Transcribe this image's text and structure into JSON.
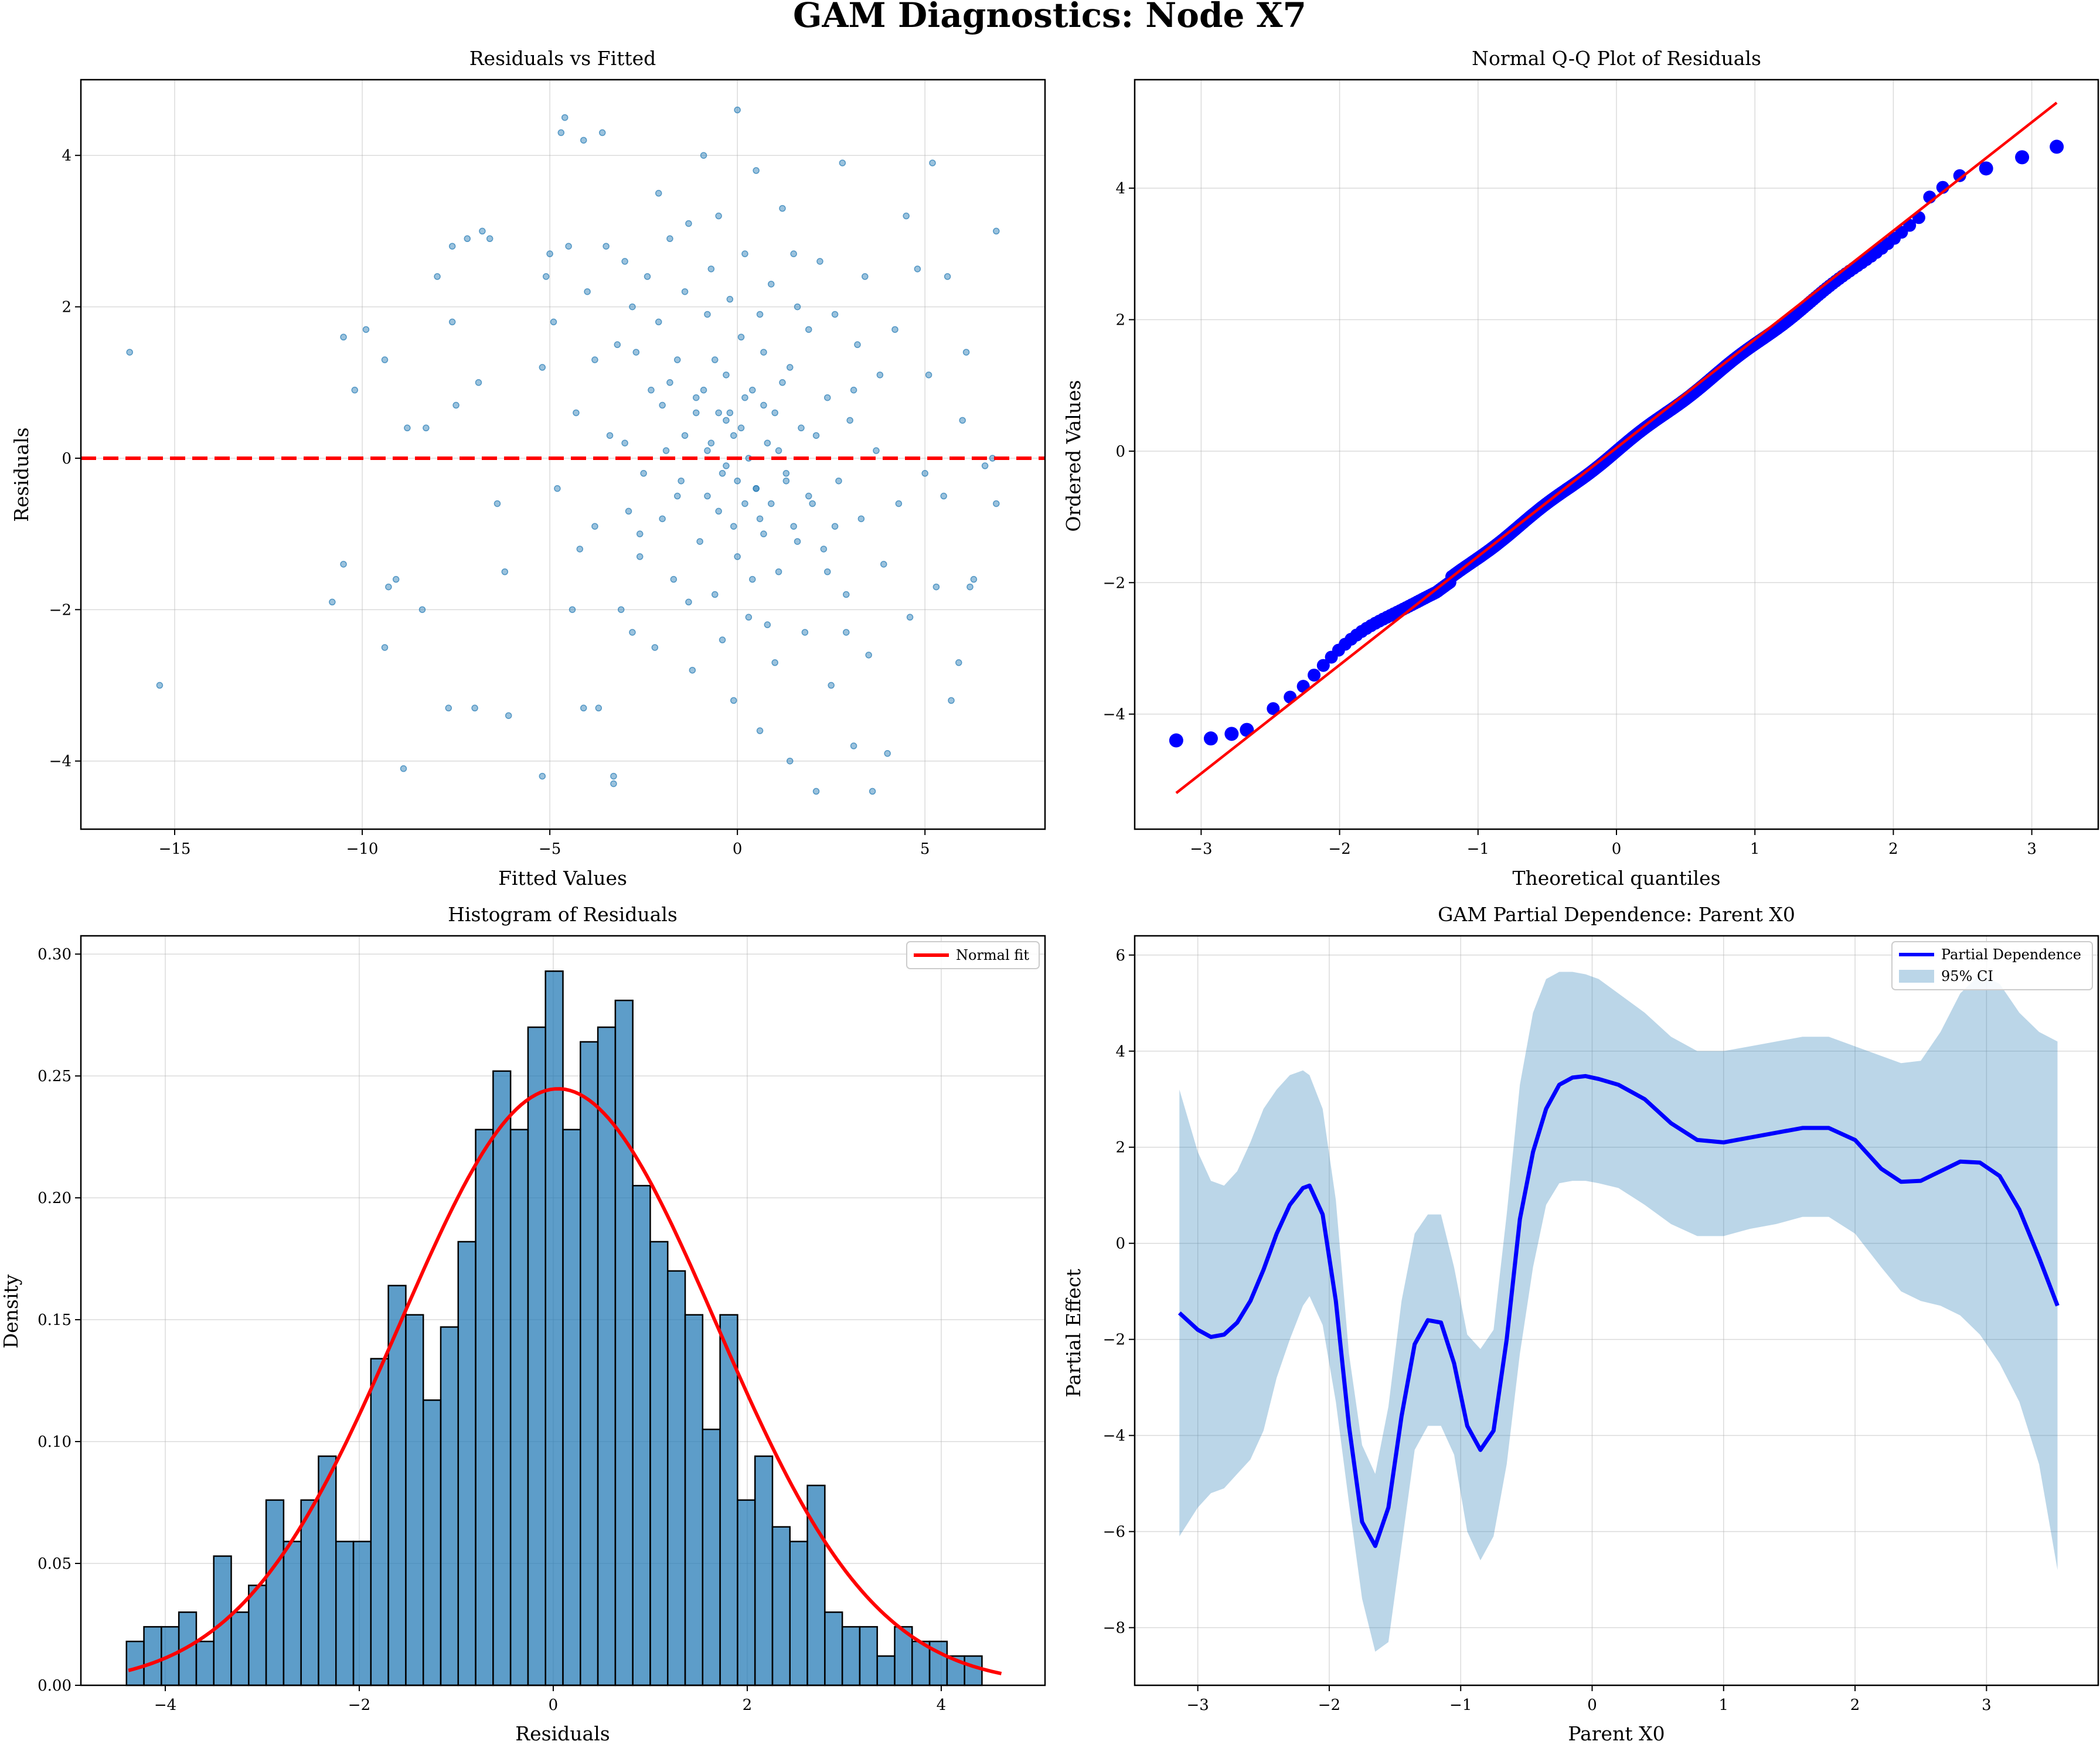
{
  "suptitle": "GAM Diagnostics: Node X7",
  "colors": {
    "scatter": "#1f77b4",
    "refline": "#ff0000",
    "qq_points": "#0000ff",
    "hist_fill": "#1f77b4",
    "pd_line": "#0000ff",
    "ci_fill": "#1f77b4"
  },
  "chart_data": [
    {
      "id": "residuals_vs_fitted",
      "type": "scatter",
      "title": "Residuals vs Fitted",
      "xlabel": "Fitted Values",
      "ylabel": "Residuals",
      "xlim": [
        -17.5,
        8.2
      ],
      "ylim": [
        -4.9,
        5.0
      ],
      "xticks": [
        -15,
        -10,
        -5,
        0,
        5
      ],
      "xtick_labels": [
        "−15",
        "−10",
        "−5",
        "0",
        "5"
      ],
      "yticks": [
        -4,
        -2,
        0,
        2,
        4
      ],
      "ytick_labels": [
        "−4",
        "−2",
        "0",
        "2",
        "4"
      ],
      "grid": true,
      "reference_line_y": 0,
      "points": [
        [
          -16.2,
          1.4
        ],
        [
          -15.4,
          -3.0
        ],
        [
          -10.8,
          -1.9
        ],
        [
          -10.5,
          1.6
        ],
        [
          -10.5,
          -1.4
        ],
        [
          -10.2,
          0.9
        ],
        [
          -9.9,
          1.7
        ],
        [
          -9.4,
          1.3
        ],
        [
          -9.4,
          -2.5
        ],
        [
          -9.3,
          -1.7
        ],
        [
          -9.1,
          -1.6
        ],
        [
          -8.9,
          -4.1
        ],
        [
          -8.8,
          0.4
        ],
        [
          -8.4,
          -2.0
        ],
        [
          -8.3,
          0.4
        ],
        [
          -8.0,
          2.4
        ],
        [
          -7.7,
          -3.3
        ],
        [
          -7.6,
          1.8
        ],
        [
          -7.6,
          2.8
        ],
        [
          -7.5,
          0.7
        ],
        [
          -7.2,
          2.9
        ],
        [
          -7.0,
          -3.3
        ],
        [
          -6.9,
          1.0
        ],
        [
          -6.8,
          3.0
        ],
        [
          -6.6,
          2.9
        ],
        [
          -6.4,
          -0.6
        ],
        [
          -6.2,
          -1.5
        ],
        [
          -6.1,
          -3.4
        ],
        [
          -5.2,
          -4.2
        ],
        [
          -5.2,
          1.2
        ],
        [
          -5.1,
          2.4
        ],
        [
          -5.0,
          2.7
        ],
        [
          -4.9,
          1.8
        ],
        [
          -4.8,
          -0.4
        ],
        [
          -4.7,
          4.3
        ],
        [
          -4.6,
          4.5
        ],
        [
          -4.5,
          2.8
        ],
        [
          -4.4,
          -2.0
        ],
        [
          -4.3,
          0.6
        ],
        [
          -4.2,
          -1.2
        ],
        [
          -4.1,
          -3.3
        ],
        [
          -4.1,
          4.2
        ],
        [
          -4.0,
          2.2
        ],
        [
          -3.8,
          -0.9
        ],
        [
          -3.8,
          1.3
        ],
        [
          -3.7,
          -3.3
        ],
        [
          -3.6,
          4.3
        ],
        [
          -3.5,
          2.8
        ],
        [
          -3.4,
          0.3
        ],
        [
          -3.3,
          -4.2
        ],
        [
          -3.3,
          -4.3
        ],
        [
          -3.2,
          1.5
        ],
        [
          -3.1,
          -2.0
        ],
        [
          -3.0,
          2.6
        ],
        [
          -2.9,
          -0.7
        ],
        [
          -2.8,
          2.0
        ],
        [
          -2.7,
          1.4
        ],
        [
          -2.6,
          -1.3
        ],
        [
          -2.5,
          -0.2
        ],
        [
          -2.4,
          2.4
        ],
        [
          -2.3,
          0.9
        ],
        [
          -2.2,
          -2.5
        ],
        [
          -2.1,
          1.8
        ],
        [
          -2.1,
          3.5
        ],
        [
          -2.0,
          -0.8
        ],
        [
          -1.9,
          0.1
        ],
        [
          -1.8,
          2.9
        ],
        [
          -1.7,
          -1.6
        ],
        [
          -1.6,
          1.3
        ],
        [
          -1.5,
          -0.3
        ],
        [
          -1.4,
          2.2
        ],
        [
          -1.3,
          3.1
        ],
        [
          -1.2,
          -2.8
        ],
        [
          -1.1,
          0.8
        ],
        [
          -1.0,
          -1.1
        ],
        [
          -0.9,
          4.0
        ],
        [
          -0.8,
          1.9
        ],
        [
          -0.8,
          -0.5
        ],
        [
          -0.7,
          2.5
        ],
        [
          -0.6,
          -1.8
        ],
        [
          -0.5,
          0.6
        ],
        [
          -0.5,
          3.2
        ],
        [
          -0.4,
          -2.4
        ],
        [
          -0.3,
          1.1
        ],
        [
          -0.3,
          -0.1
        ],
        [
          -0.2,
          2.1
        ],
        [
          -0.1,
          -3.2
        ],
        [
          -0.1,
          0.3
        ],
        [
          0.0,
          4.6
        ],
        [
          0.0,
          -1.3
        ],
        [
          0.1,
          1.6
        ],
        [
          0.2,
          -0.6
        ],
        [
          0.2,
          2.7
        ],
        [
          0.3,
          -2.1
        ],
        [
          0.4,
          0.9
        ],
        [
          0.5,
          -0.4
        ],
        [
          0.5,
          3.8
        ],
        [
          0.6,
          -3.6
        ],
        [
          0.7,
          1.4
        ],
        [
          0.7,
          -1.0
        ],
        [
          0.8,
          0.2
        ],
        [
          0.9,
          2.3
        ],
        [
          1.0,
          -2.7
        ],
        [
          1.0,
          0.6
        ],
        [
          1.1,
          -1.5
        ],
        [
          1.2,
          3.3
        ],
        [
          1.3,
          -0.2
        ],
        [
          1.4,
          1.2
        ],
        [
          1.4,
          -4.0
        ],
        [
          1.5,
          -0.9
        ],
        [
          1.6,
          2.0
        ],
        [
          1.7,
          0.4
        ],
        [
          1.8,
          -2.3
        ],
        [
          1.9,
          1.7
        ],
        [
          2.0,
          -0.6
        ],
        [
          2.1,
          -4.4
        ],
        [
          2.2,
          2.6
        ],
        [
          2.3,
          -1.2
        ],
        [
          2.4,
          0.8
        ],
        [
          2.5,
          -3.0
        ],
        [
          2.6,
          1.9
        ],
        [
          2.7,
          -0.3
        ],
        [
          2.8,
          3.9
        ],
        [
          2.9,
          -1.8
        ],
        [
          3.0,
          0.5
        ],
        [
          3.1,
          -3.8
        ],
        [
          3.2,
          1.5
        ],
        [
          3.3,
          -0.8
        ],
        [
          3.4,
          2.4
        ],
        [
          3.5,
          -2.6
        ],
        [
          3.6,
          -4.4
        ],
        [
          3.7,
          0.1
        ],
        [
          3.8,
          1.1
        ],
        [
          3.9,
          -1.4
        ],
        [
          4.0,
          -3.9
        ],
        [
          4.2,
          1.7
        ],
        [
          4.3,
          -0.6
        ],
        [
          4.5,
          3.2
        ],
        [
          4.6,
          -2.1
        ],
        [
          4.8,
          2.5
        ],
        [
          5.0,
          -0.2
        ],
        [
          5.1,
          1.1
        ],
        [
          5.2,
          3.9
        ],
        [
          5.3,
          -1.7
        ],
        [
          5.5,
          -0.5
        ],
        [
          5.6,
          2.4
        ],
        [
          5.7,
          -3.2
        ],
        [
          5.9,
          -2.7
        ],
        [
          6.0,
          0.5
        ],
        [
          6.1,
          1.4
        ],
        [
          6.2,
          -1.7
        ],
        [
          6.3,
          -1.6
        ],
        [
          6.6,
          -0.1
        ],
        [
          6.8,
          0.0
        ],
        [
          6.9,
          -0.6
        ],
        [
          6.9,
          3.0
        ],
        [
          -1.1,
          0.6
        ],
        [
          -0.9,
          0.9
        ],
        [
          -0.7,
          0.2
        ],
        [
          -0.5,
          -0.7
        ],
        [
          -0.3,
          0.5
        ],
        [
          -0.1,
          -0.9
        ],
        [
          0.1,
          0.4
        ],
        [
          0.3,
          0.0
        ],
        [
          0.5,
          -0.4
        ],
        [
          0.7,
          0.7
        ],
        [
          0.9,
          -0.6
        ],
        [
          1.1,
          0.1
        ],
        [
          1.3,
          -0.3
        ],
        [
          -0.6,
          1.3
        ],
        [
          0.4,
          -1.6
        ],
        [
          1.6,
          -1.1
        ],
        [
          -1.6,
          -0.5
        ],
        [
          2.1,
          0.3
        ],
        [
          -2.0,
          0.7
        ],
        [
          0.6,
          1.9
        ],
        [
          0.8,
          -2.2
        ],
        [
          -1.3,
          -1.9
        ],
        [
          1.5,
          2.7
        ],
        [
          -0.4,
          -0.2
        ],
        [
          0.2,
          0.8
        ],
        [
          2.6,
          -0.9
        ],
        [
          -2.6,
          -1.0
        ],
        [
          3.1,
          0.9
        ],
        [
          -3.0,
          0.2
        ],
        [
          -0.8,
          0.1
        ],
        [
          1.9,
          -0.5
        ],
        [
          -1.8,
          1.0
        ],
        [
          2.9,
          -2.3
        ],
        [
          -2.8,
          -2.3
        ],
        [
          0.0,
          -0.3
        ],
        [
          -0.2,
          0.6
        ],
        [
          0.6,
          -0.8
        ],
        [
          1.2,
          1.0
        ],
        [
          -1.4,
          0.3
        ],
        [
          2.4,
          -1.5
        ]
      ]
    },
    {
      "id": "qq_plot",
      "type": "scatter",
      "title": "Normal Q-Q Plot of Residuals",
      "xlabel": "Theoretical quantiles",
      "ylabel": "Ordered Values",
      "xlim": [
        -3.48,
        3.48
      ],
      "ylim": [
        -5.75,
        5.65
      ],
      "xticks": [
        -3,
        -2,
        -1,
        0,
        1,
        2,
        3
      ],
      "xtick_labels": [
        "−3",
        "−2",
        "−1",
        "0",
        "1",
        "2",
        "3"
      ],
      "yticks": [
        -4,
        -2,
        0,
        2,
        4
      ],
      "ytick_labels": [
        "−4",
        "−2",
        "0",
        "2",
        "4"
      ],
      "grid": true,
      "fit_line": {
        "x": [
          -3.18,
          3.18
        ],
        "y": [
          -5.2,
          5.3
        ]
      },
      "outlier_points": [
        [
          -3.18,
          -4.4
        ],
        [
          -2.93,
          -4.37
        ],
        [
          -2.78,
          -4.3
        ],
        [
          -2.67,
          -4.24
        ],
        [
          2.67,
          4.3
        ],
        [
          2.93,
          4.47
        ],
        [
          3.18,
          4.63
        ]
      ]
    },
    {
      "id": "histogram",
      "type": "bar",
      "title": "Histogram of Residuals",
      "xlabel": "Residuals",
      "ylabel": "Density",
      "xlim": [
        -4.87,
        5.07
      ],
      "ylim": [
        0,
        0.3075
      ],
      "xticks": [
        -4,
        -2,
        0,
        2,
        4
      ],
      "xtick_labels": [
        "−4",
        "−2",
        "0",
        "2",
        "4"
      ],
      "yticks": [
        0.0,
        0.05,
        0.1,
        0.15,
        0.2,
        0.25,
        0.3
      ],
      "ytick_labels": [
        "0.00",
        "0.05",
        "0.10",
        "0.15",
        "0.20",
        "0.25",
        "0.30"
      ],
      "grid": true,
      "bin_start": -4.4,
      "bin_width": 0.18,
      "values": [
        0.018,
        0.024,
        0.024,
        0.03,
        0.018,
        0.053,
        0.03,
        0.041,
        0.076,
        0.059,
        0.076,
        0.094,
        0.059,
        0.059,
        0.134,
        0.164,
        0.152,
        0.117,
        0.147,
        0.182,
        0.228,
        0.252,
        0.228,
        0.27,
        0.293,
        0.228,
        0.264,
        0.27,
        0.281,
        0.205,
        0.182,
        0.17,
        0.152,
        0.105,
        0.152,
        0.076,
        0.094,
        0.065,
        0.059,
        0.082,
        0.03,
        0.024,
        0.024,
        0.012,
        0.024,
        0.018,
        0.018,
        0.012,
        0.012
      ],
      "normal_fit": {
        "mean": 0.05,
        "sd": 1.63
      },
      "legend": [
        "Normal fit"
      ],
      "legend_position": "top-right"
    },
    {
      "id": "partial_dependence",
      "type": "line",
      "title": "GAM Partial Dependence: Parent X0",
      "xlabel": "Parent X0",
      "ylabel": "Partial Effect",
      "xlim": [
        -3.48,
        3.85
      ],
      "ylim": [
        -9.2,
        6.4
      ],
      "xticks": [
        -3,
        -2,
        -1,
        0,
        1,
        2,
        3
      ],
      "xtick_labels": [
        "−3",
        "−2",
        "−1",
        "0",
        "1",
        "2",
        "3"
      ],
      "yticks": [
        -8,
        -6,
        -4,
        -2,
        0,
        2,
        4,
        6
      ],
      "ytick_labels": [
        "−8",
        "−6",
        "−4",
        "−2",
        "0",
        "2",
        "4",
        "6"
      ],
      "grid": true,
      "x": [
        -3.14,
        -3.0,
        -2.9,
        -2.8,
        -2.7,
        -2.6,
        -2.5,
        -2.4,
        -2.3,
        -2.2,
        -2.15,
        -2.05,
        -1.95,
        -1.85,
        -1.75,
        -1.65,
        -1.55,
        -1.45,
        -1.35,
        -1.25,
        -1.15,
        -1.05,
        -0.95,
        -0.85,
        -0.75,
        -0.65,
        -0.55,
        -0.45,
        -0.35,
        -0.25,
        -0.15,
        -0.05,
        0.05,
        0.2,
        0.4,
        0.6,
        0.8,
        1.0,
        1.2,
        1.4,
        1.6,
        1.8,
        2.0,
        2.2,
        2.35,
        2.5,
        2.65,
        2.8,
        2.95,
        3.1,
        3.25,
        3.4,
        3.54
      ],
      "y": [
        -1.45,
        -1.8,
        -1.95,
        -1.9,
        -1.65,
        -1.2,
        -0.55,
        0.2,
        0.8,
        1.15,
        1.2,
        0.6,
        -1.2,
        -3.8,
        -5.8,
        -6.3,
        -5.5,
        -3.6,
        -2.1,
        -1.6,
        -1.65,
        -2.5,
        -3.8,
        -4.3,
        -3.9,
        -2.0,
        0.5,
        1.9,
        2.8,
        3.3,
        3.45,
        3.48,
        3.42,
        3.3,
        3.0,
        2.5,
        2.15,
        2.1,
        2.2,
        2.3,
        2.4,
        2.4,
        2.15,
        1.55,
        1.28,
        1.3,
        1.5,
        1.7,
        1.68,
        1.4,
        0.7,
        -0.3,
        -1.3
      ],
      "ci_upper": [
        3.2,
        1.9,
        1.3,
        1.2,
        1.5,
        2.1,
        2.8,
        3.2,
        3.5,
        3.6,
        3.5,
        2.8,
        0.9,
        -2.3,
        -4.2,
        -4.8,
        -3.4,
        -1.2,
        0.2,
        0.6,
        0.6,
        -0.5,
        -1.9,
        -2.2,
        -1.8,
        0.6,
        3.3,
        4.8,
        5.5,
        5.65,
        5.65,
        5.6,
        5.5,
        5.2,
        4.8,
        4.3,
        4.0,
        4.0,
        4.1,
        4.2,
        4.3,
        4.3,
        4.1,
        3.9,
        3.75,
        3.8,
        4.4,
        5.2,
        5.6,
        5.4,
        4.8,
        4.4,
        4.2
      ],
      "ci_lower": [
        -6.1,
        -5.5,
        -5.2,
        -5.1,
        -4.8,
        -4.5,
        -3.9,
        -2.8,
        -2.0,
        -1.3,
        -1.1,
        -1.7,
        -3.3,
        -5.4,
        -7.4,
        -8.5,
        -8.3,
        -6.3,
        -4.3,
        -3.8,
        -3.8,
        -4.4,
        -6.0,
        -6.6,
        -6.1,
        -4.6,
        -2.3,
        -0.5,
        0.8,
        1.25,
        1.3,
        1.3,
        1.25,
        1.15,
        0.8,
        0.4,
        0.15,
        0.15,
        0.3,
        0.4,
        0.55,
        0.55,
        0.2,
        -0.5,
        -1.0,
        -1.2,
        -1.3,
        -1.5,
        -1.9,
        -2.5,
        -3.3,
        -4.6,
        -6.8
      ],
      "legend": [
        "Partial Dependence",
        "95% CI"
      ],
      "legend_position": "top-right"
    }
  ]
}
